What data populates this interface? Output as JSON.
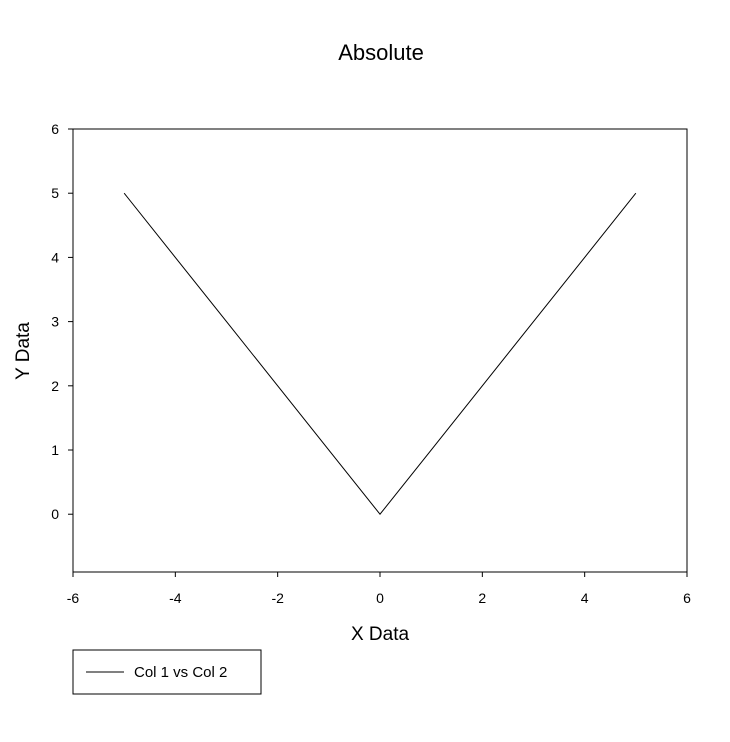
{
  "chart_data": {
    "type": "line",
    "title": "Absolute",
    "xlabel": "X Data",
    "ylabel": "Y Data",
    "xlim": [
      -6,
      6
    ],
    "ylim": [
      -0.9,
      6
    ],
    "xticks": [
      -6,
      -4,
      -2,
      0,
      2,
      4,
      6
    ],
    "yticks": [
      0,
      1,
      2,
      3,
      4,
      5,
      6
    ],
    "grid": false,
    "legend_position": "bottom-left",
    "series": [
      {
        "name": "Col 1 vs Col 2",
        "color": "#000000",
        "x": [
          -5,
          -4,
          -3,
          -2,
          -1,
          0,
          1,
          2,
          3,
          4,
          5
        ],
        "y": [
          5,
          4,
          3,
          2,
          1,
          0,
          1,
          2,
          3,
          4,
          5
        ]
      }
    ]
  }
}
